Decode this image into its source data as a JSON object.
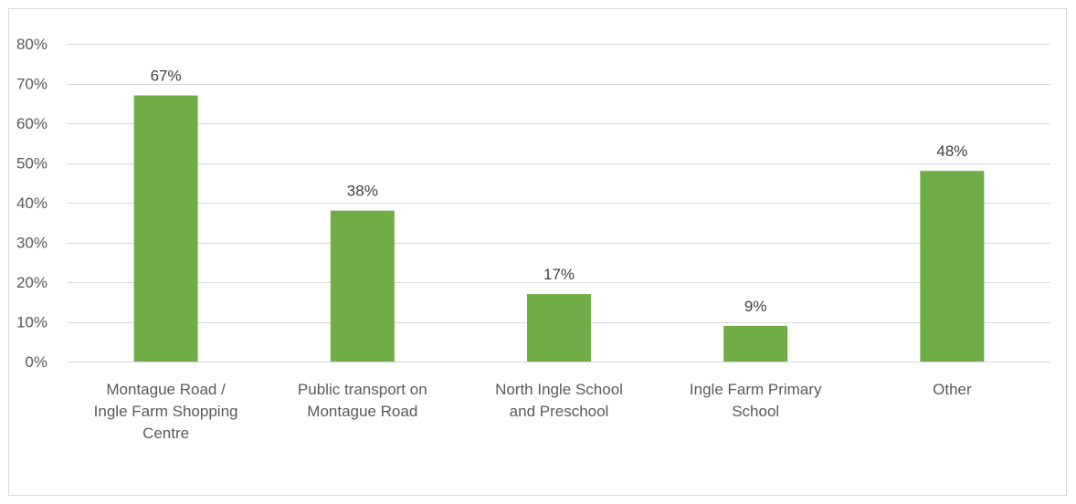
{
  "chart_data": {
    "type": "bar",
    "title": "",
    "xlabel": "",
    "ylabel": "",
    "categories": [
      "Montague Road / Ingle Farm Shopping Centre",
      "Public transport on Montague Road",
      "North Ingle School and Preschool",
      "Ingle Farm Primary School",
      "Other"
    ],
    "category_label_lines": [
      [
        "Montague Road /",
        "Ingle Farm Shopping",
        "Centre"
      ],
      [
        "Public transport on",
        "Montague Road"
      ],
      [
        "North Ingle School",
        "and Preschool"
      ],
      [
        "Ingle Farm Primary",
        "School"
      ],
      [
        "Other"
      ]
    ],
    "values": [
      67,
      38,
      17,
      9,
      48
    ],
    "data_labels": [
      "67%",
      "38%",
      "17%",
      "9%",
      "48%"
    ],
    "ylim": [
      0,
      80
    ],
    "y_ticks": [
      0,
      10,
      20,
      30,
      40,
      50,
      60,
      70,
      80
    ],
    "y_tick_labels": [
      "0%",
      "10%",
      "20%",
      "30%",
      "40%",
      "50%",
      "60%",
      "70%",
      "80%"
    ],
    "grid": true,
    "legend": "none",
    "bar_color": "#70ad47"
  }
}
